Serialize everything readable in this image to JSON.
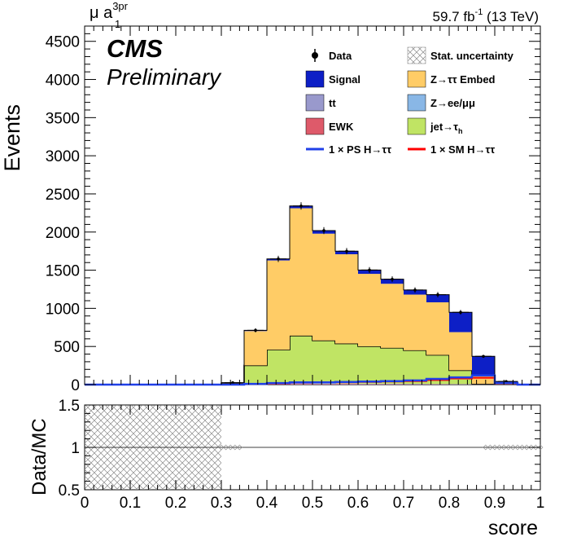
{
  "header": {
    "channel_main": "μ a",
    "channel_sub": "1",
    "channel_sup": "3pr",
    "lumi_main": "59.7 fb",
    "lumi_sup": "-1",
    "lumi_tail": " (13 TeV)",
    "cms": "CMS",
    "preliminary": "Preliminary"
  },
  "legend": {
    "data": "Data",
    "stat": "Stat. uncertainty",
    "signal": "Signal",
    "ztt": "Z→ττ Embed",
    "tt": "tt",
    "zll": "Z→ee/μμ",
    "ewk": "EWK",
    "jetfake_main": "jet→τ",
    "jetfake_sub": "h",
    "ps": "1 × PS H→ττ",
    "sm": "1 × SM H→ττ"
  },
  "colors": {
    "signal": "#0d1fc6",
    "ztt": "#ffcc66",
    "tt": "#9999cc",
    "zll": "#89b7e6",
    "ewk": "#de5a6a",
    "jetfake": "#c0e464",
    "ps_line": "#2040e8",
    "sm_line": "#ff0000"
  },
  "chart_data": [
    {
      "type": "bar",
      "stacked": true,
      "ylabel": "Events",
      "ylim": [
        0,
        4700
      ],
      "xlim": [
        0,
        1
      ],
      "yticks": [
        0,
        500,
        1000,
        1500,
        2000,
        2500,
        3000,
        3500,
        4000,
        4500
      ],
      "bin_edges": [
        0,
        0.05,
        0.1,
        0.15,
        0.2,
        0.25,
        0.3,
        0.35,
        0.4,
        0.45,
        0.5,
        0.55,
        0.6,
        0.65,
        0.7,
        0.75,
        0.8,
        0.85,
        0.9,
        0.95,
        1.0
      ],
      "series": [
        {
          "name": "EWK",
          "values": [
            0,
            0,
            0,
            0,
            0,
            0,
            5,
            10,
            8,
            8,
            6,
            6,
            5,
            5,
            4,
            4,
            3,
            2,
            1,
            0
          ]
        },
        {
          "name": "tt",
          "values": [
            0,
            0,
            0,
            0,
            0,
            0,
            6,
            8,
            6,
            6,
            5,
            5,
            4,
            4,
            4,
            3,
            3,
            2,
            1,
            0
          ]
        },
        {
          "name": "Z→ee/μμ",
          "values": [
            0,
            0,
            0,
            0,
            0,
            0,
            2,
            4,
            4,
            3,
            3,
            3,
            3,
            3,
            2,
            2,
            2,
            1,
            1,
            0
          ]
        },
        {
          "name": "jet→τh",
          "values": [
            0,
            0,
            0,
            0,
            0,
            0,
            6,
            230,
            440,
            625,
            565,
            525,
            490,
            470,
            440,
            380,
            180,
            6,
            0,
            0
          ]
        },
        {
          "name": "Z→ττ Embed",
          "values": [
            0,
            0,
            0,
            0,
            0,
            0,
            4,
            450,
            1170,
            1670,
            1400,
            1170,
            950,
            840,
            730,
            690,
            500,
            120,
            20,
            0
          ]
        },
        {
          "name": "Signal",
          "values": [
            0,
            0,
            0,
            0,
            0,
            0,
            2,
            10,
            20,
            30,
            40,
            40,
            50,
            60,
            60,
            100,
            260,
            240,
            18,
            0
          ]
        }
      ],
      "data_values": [
        0,
        0,
        0,
        0,
        0,
        0,
        25,
        712,
        1648,
        2342,
        2019,
        1749,
        1502,
        1382,
        1240,
        1179,
        948,
        371,
        41,
        0
      ],
      "ps_line": [
        0,
        0,
        0,
        0,
        0,
        0,
        0,
        10,
        20,
        30,
        30,
        35,
        40,
        45,
        55,
        75,
        95,
        120,
        20,
        0
      ],
      "sm_line": [
        0,
        0,
        0,
        0,
        0,
        0,
        0,
        10,
        15,
        25,
        30,
        30,
        35,
        40,
        45,
        60,
        80,
        90,
        15,
        0
      ]
    },
    {
      "type": "scatter",
      "xlabel": "score",
      "ylabel": "Data/MC",
      "xlim": [
        0,
        1
      ],
      "ylim": [
        0.5,
        1.5
      ],
      "yticks": [
        0.5,
        1,
        1.5
      ],
      "xticks": [
        0,
        0.1,
        0.2,
        0.3,
        0.4,
        0.5,
        0.6,
        0.7,
        0.8,
        0.9,
        1
      ],
      "reference_line": 1,
      "stat_band": {
        "x_range": [
          0,
          0.3
        ],
        "y_range": [
          0.5,
          1.5
        ]
      }
    }
  ]
}
